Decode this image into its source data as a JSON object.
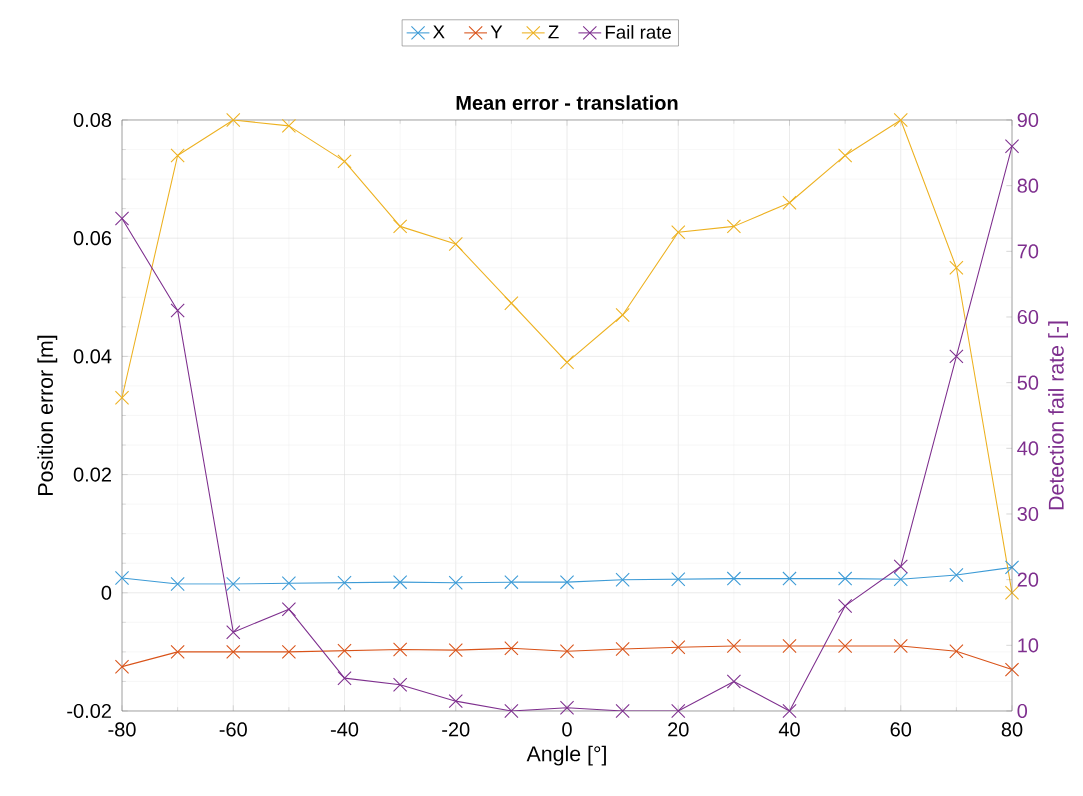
{
  "chart_data": {
    "type": "line",
    "title": "Mean error - translation",
    "xlabel": "Angle [°]",
    "ylabel": "Position error [m]",
    "y2label": "Detection fail rate [-]",
    "x": [
      -80,
      -70,
      -60,
      -50,
      -40,
      -30,
      -20,
      -10,
      0,
      10,
      20,
      30,
      40,
      50,
      60,
      70,
      80
    ],
    "series": [
      {
        "name": "X",
        "color": "#3d9bd6",
        "values": [
          0.0025,
          0.0015,
          0.0015,
          0.0016,
          0.0017,
          0.0018,
          0.0017,
          0.0018,
          0.0018,
          0.0022,
          0.0023,
          0.0024,
          0.0024,
          0.0024,
          0.0023,
          0.003,
          0.0043
        ]
      },
      {
        "name": "Y",
        "color": "#d95319",
        "values": [
          -0.0125,
          -0.01,
          -0.01,
          -0.01,
          -0.0098,
          -0.0096,
          -0.0097,
          -0.0094,
          -0.0099,
          -0.0095,
          -0.0092,
          -0.009,
          -0.009,
          -0.009,
          -0.009,
          -0.0099,
          -0.013
        ]
      },
      {
        "name": "Z",
        "color": "#edb120",
        "values": [
          0.033,
          0.074,
          0.08,
          0.079,
          0.073,
          0.062,
          0.059,
          0.049,
          0.039,
          0.047,
          0.061,
          0.062,
          0.066,
          0.074,
          0.08,
          0.055,
          0.0
        ]
      },
      {
        "name": "Fail rate",
        "color": "#7e2f8e",
        "axis": "y2",
        "values": [
          75,
          61,
          12,
          15.5,
          5,
          4,
          1.5,
          0,
          0.5,
          0,
          0,
          4.5,
          0,
          16,
          22,
          54,
          86
        ]
      }
    ],
    "xlim": [
      -80,
      80
    ],
    "xticks": [
      -80,
      -60,
      -40,
      -20,
      0,
      20,
      40,
      60,
      80
    ],
    "ylim": [
      -0.02,
      0.08
    ],
    "yticks": [
      -0.02,
      0,
      0.02,
      0.04,
      0.06,
      0.08
    ],
    "y2lim": [
      0,
      90
    ],
    "y2ticks": [
      0,
      10,
      20,
      30,
      40,
      50,
      60,
      70,
      80,
      90
    ],
    "grid": true,
    "legend": "top",
    "marker": "cross",
    "line_style": "solid"
  }
}
